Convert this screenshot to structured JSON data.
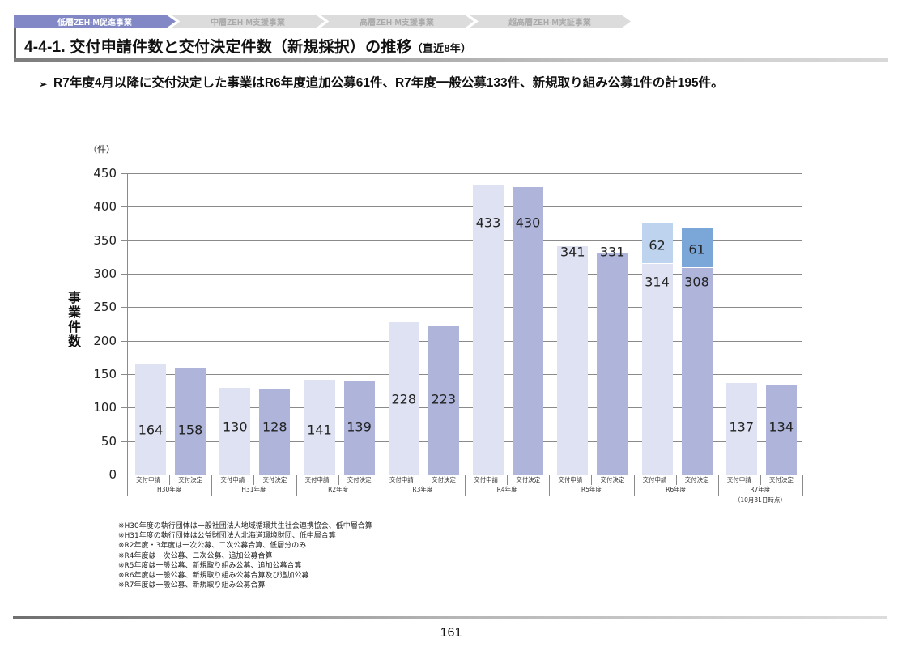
{
  "header": {
    "tabs": [
      {
        "label": "低層ZEH-M促進事業",
        "active": true
      },
      {
        "label": "中層ZEH-M支援事業",
        "active": false
      },
      {
        "label": "高層ZEH-M支援事業",
        "active": false
      },
      {
        "label": "超高層ZEH-M実証事業",
        "active": false
      }
    ],
    "title": "4-4-1. 交付申請件数と交付決定件数（新規採択）の推移",
    "title_sub": "（直近8年）"
  },
  "bullet": {
    "mark": "➢",
    "text": "R7年度4月以降に交付決定した事業はR6年度追加公募61件、R7年度一般公募133件、新規取り組み公募1件の計195件。"
  },
  "colors": {
    "application": "#dfe2f2",
    "decision": "#aeb4da",
    "application_additional": "#bdd3ee",
    "decision_additional": "#7ba7d8",
    "active_tab": "#8188c5"
  },
  "chart_data": {
    "type": "bar",
    "title": "交付申請件数と交付決定件数（新規採択）の推移（直近8年）",
    "xlabel": "",
    "ylabel": "事業件数",
    "unit": "（件）",
    "ylim": [
      0,
      450
    ],
    "yticks": [
      0,
      50,
      100,
      150,
      200,
      250,
      300,
      350,
      400,
      450
    ],
    "grid": true,
    "legend": "none",
    "bar_categories": [
      "交付申請",
      "交付決定"
    ],
    "categories": [
      "H30年度",
      "H31年度",
      "R2年度",
      "R3年度",
      "R4年度",
      "R5年度",
      "R6年度",
      "R7年度"
    ],
    "category_notes": {
      "R7年度": "（10月31日時点）"
    },
    "series": [
      {
        "name": "交付申請",
        "values": [
          164,
          130,
          141,
          228,
          433,
          341,
          314,
          137
        ]
      },
      {
        "name": "交付決定",
        "values": [
          158,
          128,
          139,
          223,
          430,
          331,
          308,
          134
        ]
      },
      {
        "name": "交付申請（R6追加公募）",
        "values": [
          0,
          0,
          0,
          0,
          0,
          0,
          62,
          0
        ],
        "stacked_on": "交付申請"
      },
      {
        "name": "交付決定（R6追加公募）",
        "values": [
          0,
          0,
          0,
          0,
          0,
          0,
          61,
          0
        ],
        "stacked_on": "交付決定"
      }
    ]
  },
  "notes": [
    "※H30年度の執行団体は一般社団法人地域循環共生社会連携協会、低中層合算",
    "※H31年度の執行団体は公益財団法人北海道環境財団、低中層合算",
    "※R2年度・3年度は一次公募、二次公募合算、低層分のみ",
    "※R4年度は一次公募、二次公募、追加公募合算",
    "※R5年度は一般公募、新規取り組み公募、追加公募合算",
    "※R6年度は一般公募、新規取り組み公募合算及び追加公募",
    "※R7年度は一般公募、新規取り組み公募合算"
  ],
  "footer": {
    "page_number": "161"
  }
}
